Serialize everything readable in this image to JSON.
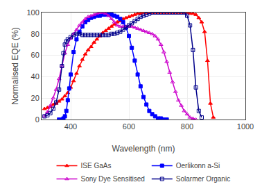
{
  "chart_data": {
    "type": "line",
    "title": "",
    "xlabel": "Wavelength (nm)",
    "ylabel": "Normalised EQE (%)",
    "xlim": [
      300,
      1000
    ],
    "ylim": [
      0,
      100
    ],
    "xticks": [
      400,
      600,
      800,
      1000
    ],
    "yticks": [
      0,
      20,
      40,
      60,
      80,
      100
    ],
    "grid": true,
    "legend": "bottom",
    "series": [
      {
        "name": "ISE GaAs",
        "color": "#ff0000",
        "marker": "triangle",
        "x": [
          310,
          320,
          330,
          340,
          350,
          360,
          370,
          380,
          390,
          400,
          410,
          420,
          430,
          440,
          450,
          460,
          470,
          480,
          490,
          500,
          510,
          520,
          530,
          540,
          550,
          560,
          570,
          580,
          590,
          600,
          610,
          620,
          630,
          640,
          650,
          660,
          670,
          680,
          690,
          700,
          710,
          720,
          730,
          740,
          750,
          760,
          770,
          780,
          790,
          800,
          810,
          820,
          830,
          840,
          850,
          860,
          870,
          880,
          890
        ],
        "values": [
          10,
          11,
          12,
          14,
          15,
          17,
          19,
          22,
          25,
          30,
          36,
          43,
          50,
          56,
          61,
          65,
          68,
          72,
          75,
          78,
          81,
          83,
          85,
          87,
          89,
          91,
          92,
          94,
          95,
          96,
          97,
          98,
          99,
          99,
          100,
          100,
          100,
          100,
          100,
          100,
          100,
          100,
          100,
          100,
          100,
          100,
          100,
          100,
          100,
          100,
          99,
          99,
          98,
          95,
          91,
          82,
          55,
          15,
          2
        ]
      },
      {
        "name": "Oerlikonn a-Si",
        "color": "#0000ff",
        "marker": "square",
        "x": [
          360,
          365,
          370,
          375,
          380,
          385,
          390,
          395,
          400,
          410,
          420,
          430,
          440,
          450,
          460,
          470,
          480,
          490,
          500,
          510,
          520,
          530,
          540,
          550,
          560,
          570,
          580,
          590,
          600,
          610,
          620,
          630,
          640,
          650,
          660,
          670,
          680,
          690,
          700,
          710,
          720,
          730
        ],
        "values": [
          0,
          0,
          0,
          1,
          3,
          8,
          18,
          29,
          42,
          63,
          75,
          82,
          87,
          91,
          93,
          95,
          96,
          97,
          97,
          98,
          98,
          98,
          98,
          97,
          96,
          94,
          91,
          86,
          78,
          67,
          55,
          42,
          31,
          21,
          14,
          8,
          5,
          3,
          1,
          1,
          0,
          0
        ]
      },
      {
        "name": "Sony Dye Sensitised",
        "color": "#cc00cc",
        "marker": "triangle-open",
        "x": [
          310,
          320,
          330,
          340,
          350,
          360,
          370,
          380,
          390,
          400,
          410,
          420,
          430,
          440,
          450,
          460,
          470,
          480,
          490,
          500,
          510,
          520,
          530,
          540,
          550,
          560,
          570,
          580,
          590,
          600,
          610,
          620,
          630,
          640,
          650,
          660,
          670,
          680,
          690,
          700,
          710,
          720,
          730,
          740,
          750,
          760,
          770,
          780,
          790,
          800,
          810,
          820,
          830
        ],
        "values": [
          3,
          7,
          13,
          20,
          28,
          38,
          50,
          62,
          70,
          76,
          80,
          84,
          88,
          91,
          94,
          96,
          97,
          98,
          99,
          100,
          100,
          99,
          97,
          94,
          91,
          88,
          87,
          87,
          87,
          87,
          87,
          86,
          85,
          84,
          83,
          82,
          81,
          80,
          78,
          75,
          70,
          63,
          54,
          44,
          35,
          26,
          18,
          13,
          8,
          5,
          2,
          1,
          0
        ]
      },
      {
        "name": "Solarmer Organic",
        "color": "#00008b",
        "marker": "square-open",
        "x": [
          310,
          320,
          330,
          340,
          350,
          360,
          370,
          375,
          380,
          385,
          390,
          400,
          410,
          420,
          430,
          440,
          450,
          460,
          470,
          480,
          490,
          500,
          510,
          520,
          530,
          540,
          550,
          560,
          570,
          580,
          590,
          600,
          610,
          620,
          630,
          640,
          650,
          660,
          670,
          680,
          690,
          700,
          710,
          720,
          730,
          740,
          750,
          760,
          770,
          780,
          790,
          800,
          810,
          820,
          830,
          840,
          850
        ],
        "values": [
          3,
          4,
          6,
          10,
          16,
          28,
          50,
          62,
          70,
          73,
          75,
          77,
          79,
          80,
          80,
          79,
          79,
          79,
          79,
          79,
          79,
          79,
          79,
          79,
          79,
          80,
          80,
          81,
          82,
          84,
          86,
          88,
          90,
          92,
          94,
          96,
          97,
          98,
          99,
          100,
          100,
          100,
          100,
          100,
          100,
          100,
          100,
          100,
          100,
          100,
          100,
          97,
          88,
          65,
          30,
          8,
          2
        ]
      }
    ]
  }
}
